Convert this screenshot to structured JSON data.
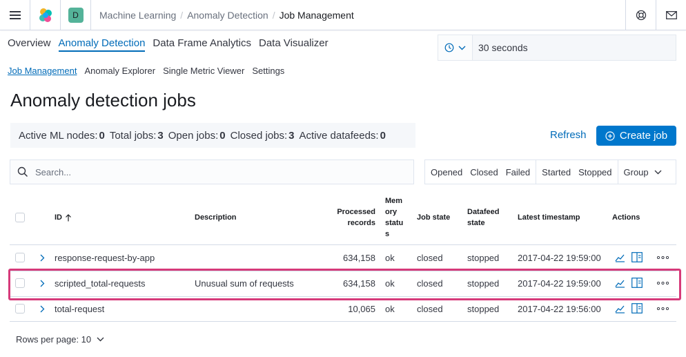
{
  "header": {
    "breadcrumbs": [
      "Machine Learning",
      "Anomaly Detection",
      "Job Management"
    ],
    "space_initial": "D"
  },
  "main_tabs": [
    {
      "label": "Overview",
      "active": false
    },
    {
      "label": "Anomaly Detection",
      "active": true
    },
    {
      "label": "Data Frame Analytics",
      "active": false
    },
    {
      "label": "Data Visualizer",
      "active": false
    }
  ],
  "refresh_interval": {
    "value": "30 seconds"
  },
  "sub_tabs": [
    {
      "label": "Job Management",
      "active": true
    },
    {
      "label": "Anomaly Explorer",
      "active": false
    },
    {
      "label": "Single Metric Viewer",
      "active": false
    },
    {
      "label": "Settings",
      "active": false
    }
  ],
  "page_title": "Anomaly detection jobs",
  "stats": [
    {
      "label": "Active ML nodes:",
      "value": "0"
    },
    {
      "label": "Total jobs:",
      "value": "3"
    },
    {
      "label": "Open jobs:",
      "value": "0"
    },
    {
      "label": "Closed jobs:",
      "value": "3"
    },
    {
      "label": "Active datafeeds:",
      "value": "0"
    }
  ],
  "actions": {
    "refresh": "Refresh",
    "create_job": "Create job"
  },
  "search": {
    "placeholder": "Search..."
  },
  "filters": {
    "state": [
      "Opened",
      "Closed",
      "Failed"
    ],
    "datafeed": [
      "Started",
      "Stopped"
    ],
    "group": "Group"
  },
  "table": {
    "headers": {
      "id": "ID",
      "description": "Description",
      "processed_1": "Processed",
      "processed_2": "records",
      "memory_1": "Mem",
      "memory_2": "ory",
      "memory_3": "statu",
      "memory_4": "s",
      "job_state": "Job state",
      "datafeed_1": "Datafeed",
      "datafeed_2": "state",
      "latest": "Latest timestamp",
      "actions": "Actions"
    },
    "rows": [
      {
        "id": "response-request-by-app",
        "description": "",
        "processed": "634,158",
        "memory": "ok",
        "job_state": "closed",
        "datafeed": "stopped",
        "latest": "2017-04-22 19:59:00"
      },
      {
        "id": "scripted_total-requests",
        "description": "Unusual sum of requests",
        "processed": "634,158",
        "memory": "ok",
        "job_state": "closed",
        "datafeed": "stopped",
        "latest": "2017-04-22 19:59:00"
      },
      {
        "id": "total-request",
        "description": "",
        "processed": "10,065",
        "memory": "ok",
        "job_state": "closed",
        "datafeed": "stopped",
        "latest": "2017-04-22 19:56:00"
      }
    ]
  },
  "pagination": {
    "rows_per_page": "Rows per page: 10"
  },
  "colors": {
    "accent": "#006bb8",
    "primary_button": "#0077cc",
    "highlight": "#d63a7a"
  }
}
